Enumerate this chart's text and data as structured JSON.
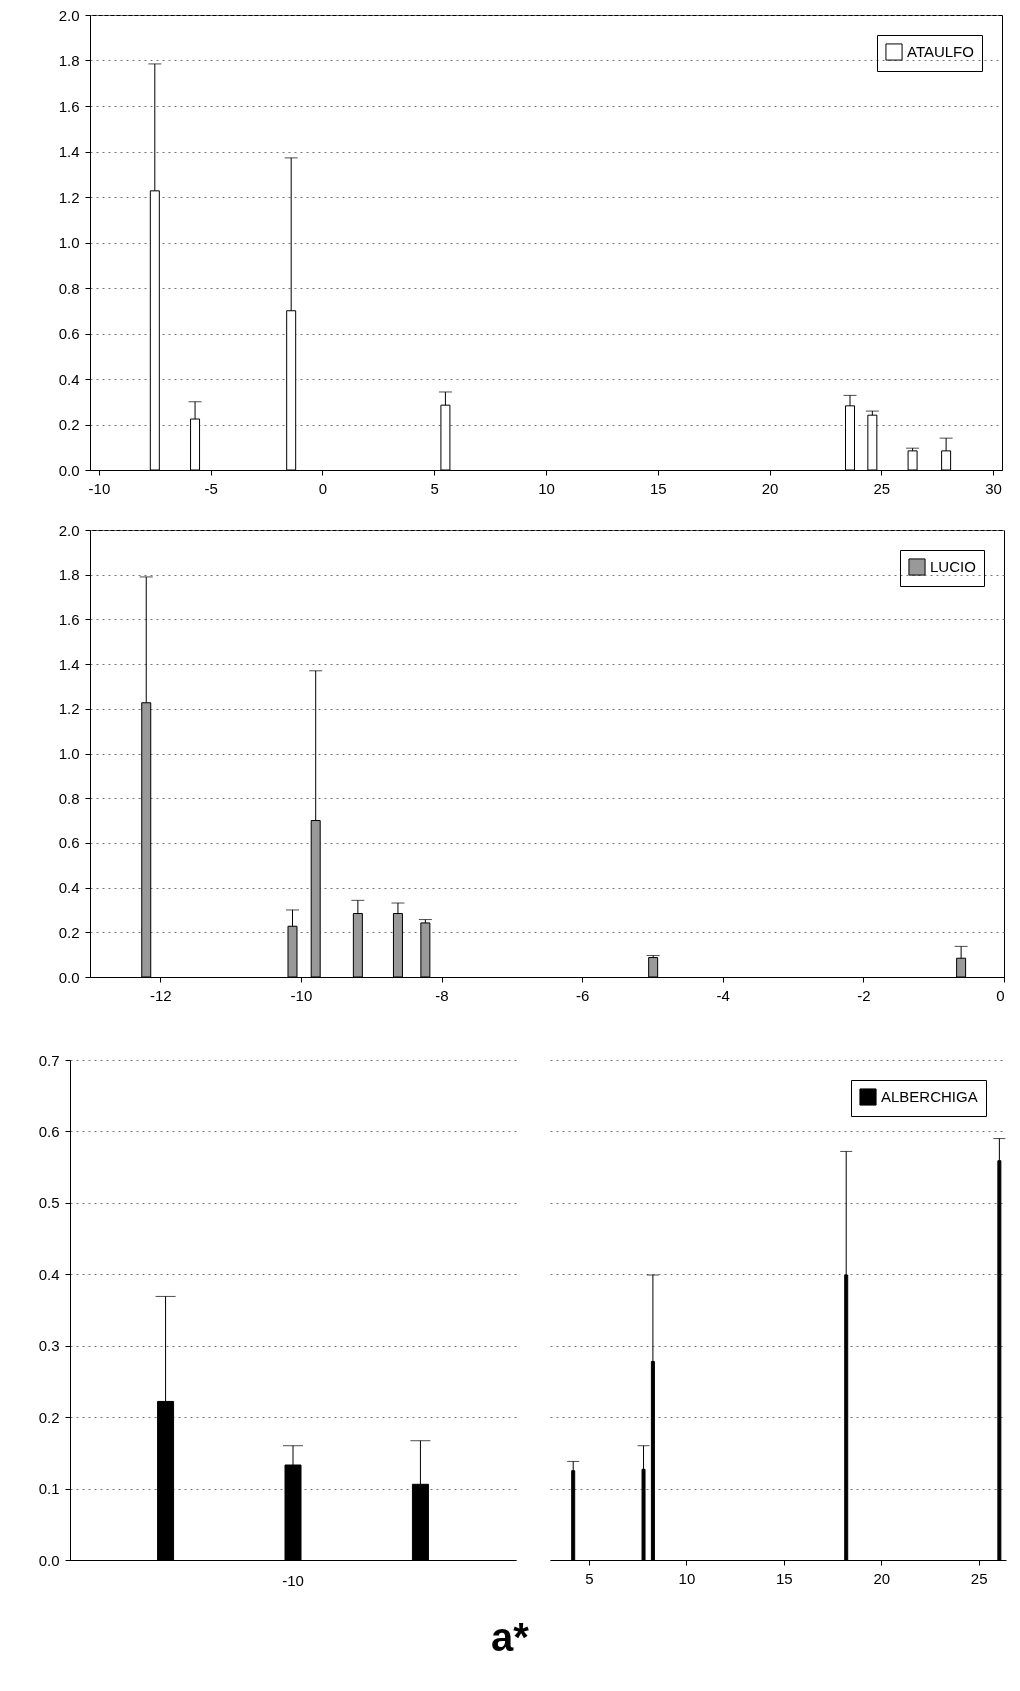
{
  "chart_data": [
    {
      "type": "bar",
      "x": [
        -7.5,
        -5.7,
        -1.4,
        5.5,
        23.6,
        24.6,
        26.4,
        27.9
      ],
      "series": [
        {
          "name": "ATAULFO",
          "color": "#ffffff",
          "values": [
            1.227,
            0.224,
            0.7,
            0.285,
            0.282,
            0.241,
            0.084,
            0.084
          ],
          "errors": [
            [
              1.227,
              1.785
            ],
            [
              0.224,
              0.3
            ],
            [
              0.7,
              1.372
            ],
            [
              0.285,
              0.343
            ],
            [
              0.282,
              0.328
            ],
            [
              0.241,
              0.259
            ],
            [
              0.084,
              0.096
            ],
            [
              0.084,
              0.14
            ]
          ]
        }
      ],
      "xlim": [
        -10.4,
        30.4
      ],
      "xticks": [
        -10,
        -5,
        0,
        5,
        10,
        15,
        20,
        25,
        30
      ],
      "ylim": [
        0,
        2
      ],
      "yticks": [
        {
          "value": 0,
          "label": "0.0"
        },
        {
          "value": 0.2,
          "label": "0.2"
        },
        {
          "value": 0.4,
          "label": "0.4"
        },
        {
          "value": 0.6,
          "label": "0.6"
        },
        {
          "value": 0.8,
          "label": "0.8"
        },
        {
          "value": 1,
          "label": "1.0"
        },
        {
          "value": 1.2,
          "label": "1.2"
        },
        {
          "value": 1.4,
          "label": "1.4"
        },
        {
          "value": 1.6,
          "label": "1.6"
        },
        {
          "value": 1.8,
          "label": "1.8"
        },
        {
          "value": 2,
          "label": "2.0"
        }
      ],
      "grid": "y",
      "legend": "top right"
    },
    {
      "type": "bar",
      "x": [
        -12.2,
        -10.12,
        -9.79,
        -9.19,
        -8.62,
        -8.23,
        -4.99,
        -0.61
      ],
      "series": [
        {
          "name": "LUCIO",
          "color": "#999999",
          "values": [
            1.227,
            0.227,
            0.7,
            0.284,
            0.284,
            0.242,
            0.087,
            0.084
          ],
          "errors": [
            [
              1.227,
              1.79
            ],
            [
              0.227,
              0.3
            ],
            [
              0.7,
              1.37
            ],
            [
              0.284,
              0.343
            ],
            [
              0.284,
              0.331
            ],
            [
              0.242,
              0.257
            ],
            [
              0.087,
              0.096
            ],
            [
              0.084,
              0.137
            ]
          ]
        }
      ],
      "xlim": [
        -13,
        0
      ],
      "xticks": [
        -12,
        -10,
        -8,
        -6,
        -4,
        -2,
        0
      ],
      "ylim": [
        0,
        2
      ],
      "yticks": [
        {
          "value": 0,
          "label": "0.0"
        },
        {
          "value": 0.2,
          "label": "0.2"
        },
        {
          "value": 0.4,
          "label": "0.4"
        },
        {
          "value": 0.6,
          "label": "0.6"
        },
        {
          "value": 0.8,
          "label": "0.8"
        },
        {
          "value": 1,
          "label": "1.0"
        },
        {
          "value": 1.2,
          "label": "1.2"
        },
        {
          "value": 1.4,
          "label": "1.4"
        },
        {
          "value": 1.6,
          "label": "1.6"
        },
        {
          "value": 1.8,
          "label": "1.8"
        },
        {
          "value": 2,
          "label": "2.0"
        }
      ],
      "grid": "y",
      "legend": "top right"
    },
    {
      "type": "bar",
      "categories": [
        null,
        null,
        null
      ],
      "series": [
        {
          "color": "#000000",
          "values": [
            0.222,
            0.133,
            0.106
          ],
          "errors": [
            [
              0.222,
              0.369
            ],
            [
              0.133,
              0.16
            ],
            [
              0.106,
              0.167
            ]
          ]
        }
      ],
      "annotations": [
        "-10"
      ],
      "ylim": [
        0,
        0.7
      ],
      "yticks": [
        {
          "value": 0,
          "label": "0.0"
        },
        {
          "value": 0.1,
          "label": "0.1"
        },
        {
          "value": 0.2,
          "label": "0.2"
        },
        {
          "value": 0.3,
          "label": "0.3"
        },
        {
          "value": 0.4,
          "label": "0.4"
        },
        {
          "value": 0.5,
          "label": "0.5"
        },
        {
          "value": 0.6,
          "label": "0.6"
        },
        {
          "value": 0.7,
          "label": "0.7"
        }
      ],
      "grid": "y"
    },
    {
      "type": "bar",
      "x": [
        4.19,
        7.8,
        8.28,
        18.2,
        26.06
      ],
      "series": [
        {
          "name": "ALBERCHIGA",
          "color": "#000000",
          "values": [
            0.125,
            0.127,
            0.278,
            0.399,
            0.559
          ],
          "errors": [
            [
              0.125,
              0.138
            ],
            [
              0.127,
              0.16
            ],
            [
              0.278,
              0.399
            ],
            [
              0.399,
              0.572
            ],
            [
              0.559,
              0.59
            ]
          ]
        }
      ],
      "xlim": [
        3,
        26.4
      ],
      "xticks": [
        5,
        10,
        15,
        20,
        25
      ],
      "ylim": [
        0,
        0.7
      ],
      "yticks": [
        {
          "value": 0,
          "label": null
        },
        {
          "value": 0.1,
          "label": null
        },
        {
          "value": 0.2,
          "label": null
        },
        {
          "value": 0.3,
          "label": null
        },
        {
          "value": 0.4,
          "label": null
        },
        {
          "value": 0.5,
          "label": null
        },
        {
          "value": 0.6,
          "label": null
        },
        {
          "value": 0.7,
          "label": null
        }
      ],
      "grid": "y",
      "legend": "top right",
      "tick_labels": "x",
      "annotations": [
        "a*"
      ]
    }
  ]
}
